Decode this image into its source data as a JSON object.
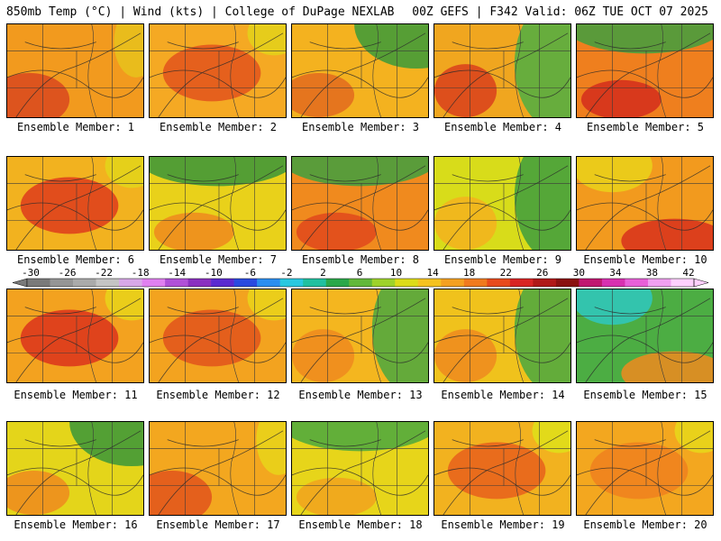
{
  "header": {
    "left": "850mb Temp (°C) | Wind (kts) | College of DuPage NEXLAB",
    "right": "00Z GEFS | F342 Valid: 06Z TUE OCT 07 2025"
  },
  "members": [
    {
      "label": "Ensemble Member: 1",
      "base": "#f29a1e",
      "cool": "#e8c21c",
      "warm": "#d9481e",
      "pattern": "warm-sw"
    },
    {
      "label": "Ensemble Member: 2",
      "base": "#f5a923",
      "cool": "#e3d21a",
      "warm": "#e2531c",
      "pattern": "warm-center"
    },
    {
      "label": "Ensemble Member: 3",
      "base": "#f4b21f",
      "cool": "#3a9a3a",
      "warm": "#e26a1e",
      "pattern": "cool-ne"
    },
    {
      "label": "Ensemble Member: 4",
      "base": "#f0a61f",
      "cool": "#4fae43",
      "warm": "#d9401c",
      "pattern": "cool-east"
    },
    {
      "label": "Ensemble Member: 5",
      "base": "#ef7f1e",
      "cool": "#3f9f3f",
      "warm": "#d32d1c",
      "pattern": "cool-north"
    },
    {
      "label": "Ensemble Member: 6",
      "base": "#f2b21f",
      "cool": "#e3d51a",
      "warm": "#de3b1c",
      "pattern": "warm-center"
    },
    {
      "label": "Ensemble Member: 7",
      "base": "#e9d11a",
      "cool": "#3a953a",
      "warm": "#ef8a1e",
      "pattern": "cool-north"
    },
    {
      "label": "Ensemble Member: 8",
      "base": "#f08a1e",
      "cool": "#3f9f3f",
      "warm": "#e0481c",
      "pattern": "cool-north"
    },
    {
      "label": "Ensemble Member: 9",
      "base": "#d8dc1a",
      "cool": "#3e9e3e",
      "warm": "#f4b21f",
      "pattern": "cool-east"
    },
    {
      "label": "Ensemble Member: 10",
      "base": "#f29a1e",
      "cool": "#ead21a",
      "warm": "#d8301c",
      "pattern": "warm-se"
    },
    {
      "label": "Ensemble Member: 11",
      "base": "#f3a21f",
      "cool": "#e7d51a",
      "warm": "#db331c",
      "pattern": "warm-center"
    },
    {
      "label": "Ensemble Member: 12",
      "base": "#f3a31f",
      "cool": "#e9d51a",
      "warm": "#e0531c",
      "pattern": "warm-center"
    },
    {
      "label": "Ensemble Member: 13",
      "base": "#f4b61f",
      "cool": "#4aa840",
      "warm": "#ee8a1e",
      "pattern": "cool-east"
    },
    {
      "label": "Ensemble Member: 14",
      "base": "#f0c21c",
      "cool": "#4aa840",
      "warm": "#ee8a1e",
      "pattern": "cool-east"
    },
    {
      "label": "Ensemble Member: 15",
      "base": "#4cad43",
      "cool": "#2fc8c0",
      "warm": "#f08a1e",
      "pattern": "warm-se"
    },
    {
      "label": "Ensemble Member: 16",
      "base": "#e4d51a",
      "cool": "#3a963a",
      "warm": "#ef8a1e",
      "pattern": "cool-ne"
    },
    {
      "label": "Ensemble Member: 17",
      "base": "#f3a71f",
      "cool": "#e7d51a",
      "warm": "#e0531c",
      "pattern": "warm-sw"
    },
    {
      "label": "Ensemble Member: 18",
      "base": "#e7d51a",
      "cool": "#4aa840",
      "warm": "#f1a21f",
      "pattern": "cool-north"
    },
    {
      "label": "Ensemble Member: 19",
      "base": "#f2b21f",
      "cool": "#dfe01a",
      "warm": "#e85f1c",
      "pattern": "warm-center"
    },
    {
      "label": "Ensemble Member: 20",
      "base": "#f3a71f",
      "cool": "#e6d81a",
      "warm": "#ee801e",
      "pattern": "warm-center"
    }
  ],
  "colorbar": {
    "labels": [
      "-30",
      "-26",
      "-22",
      "-18",
      "-14",
      "-10",
      "-6",
      "-2",
      "2",
      "6",
      "10",
      "14",
      "18",
      "22",
      "26",
      "30",
      "34",
      "38",
      "42"
    ],
    "colors": [
      "#7a7a7a",
      "#959595",
      "#aaaaaa",
      "#c4c4c4",
      "#d8a8e8",
      "#e080f0",
      "#b050d8",
      "#8a30c0",
      "#5a2ad0",
      "#2a4ae0",
      "#2a8ef0",
      "#28c8e0",
      "#20c0a0",
      "#2aa84a",
      "#62b83a",
      "#9ed22a",
      "#dcdc18",
      "#f5c220",
      "#f4a020",
      "#f07a1e",
      "#e84a1c",
      "#d82424",
      "#b01818",
      "#8a1010",
      "#c01870",
      "#d830b0",
      "#e860d8",
      "#f0a0f0",
      "#ffd0ff"
    ]
  }
}
